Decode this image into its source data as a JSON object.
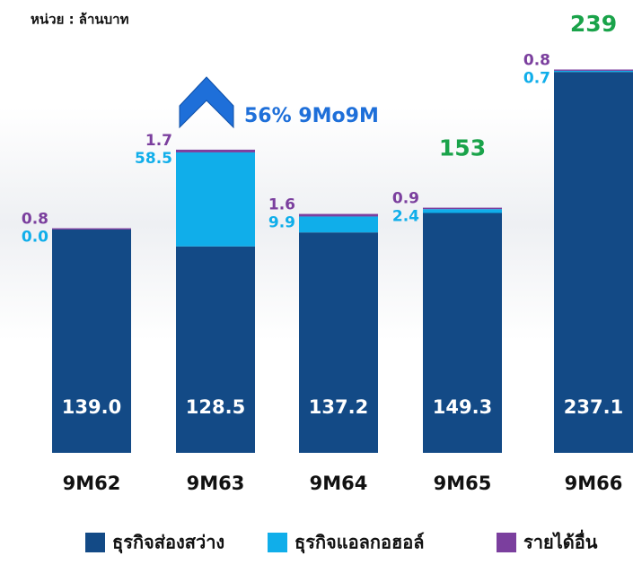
{
  "chart_data": {
    "type": "stacked-bar",
    "unit_label": "หน่วย : ล้านบาท",
    "annotation": "56% 9Mo9M",
    "categories": [
      "9M62",
      "9M63",
      "9M64",
      "9M65",
      "9M66"
    ],
    "series": [
      {
        "name": "ธุรกิจส่องสว่าง",
        "color": "#134a86",
        "values": [
          139.0,
          128.5,
          137.2,
          149.3,
          237.1
        ],
        "value_labels": [
          "139.0",
          "128.5",
          "137.2",
          "149.3",
          "237.1"
        ]
      },
      {
        "name": "ธุรกิจแอลกอฮอล์",
        "color": "#10aeea",
        "values": [
          0.0,
          58.5,
          9.9,
          2.4,
          0.7
        ],
        "value_labels": [
          "0.0",
          "58.5",
          "9.9",
          "2.4",
          "0.7"
        ]
      },
      {
        "name": "รายได้อื่น",
        "color": "#7b3f9e",
        "values": [
          0.8,
          1.7,
          1.6,
          0.9,
          0.8
        ],
        "value_labels": [
          "0.8",
          "1.7",
          "1.6",
          "0.9",
          "0.8"
        ]
      }
    ],
    "totals": [
      null,
      null,
      null,
      153,
      239
    ],
    "totals_color": "#1aa34a",
    "ylim": [
      0,
      240
    ]
  }
}
